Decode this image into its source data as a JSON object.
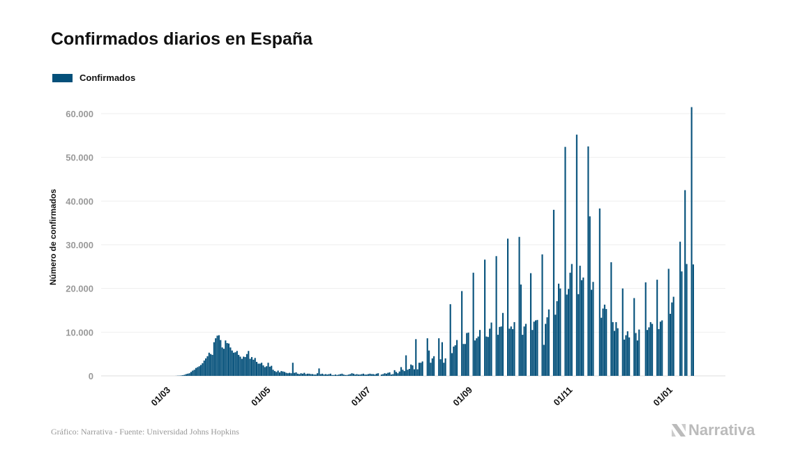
{
  "chart_data": {
    "type": "bar",
    "title": "Confirmados diarios en España",
    "legend": [
      {
        "label": "Confirmados",
        "color": "#04507a"
      }
    ],
    "legend_placement": "top-left",
    "xlabel": "",
    "ylabel": "Número de confirmados",
    "ylim": [
      0,
      60000
    ],
    "yticks": [
      0,
      10000,
      20000,
      30000,
      40000,
      50000,
      60000
    ],
    "ytick_labels": [
      "0",
      "10.000",
      "20.000",
      "30.000",
      "40.000",
      "50.000",
      "60.000"
    ],
    "grid": true,
    "start_date": "2020-02-01",
    "xticks": [
      {
        "label": "01/03",
        "day_index": 29
      },
      {
        "label": "01/05",
        "day_index": 90
      },
      {
        "label": "01/07",
        "day_index": 151
      },
      {
        "label": "01/09",
        "day_index": 213
      },
      {
        "label": "01/11",
        "day_index": 274
      },
      {
        "label": "01/01",
        "day_index": 335
      }
    ],
    "values": [
      0,
      0,
      0,
      0,
      0,
      0,
      0,
      0,
      0,
      0,
      0,
      0,
      0,
      0,
      0,
      0,
      0,
      0,
      0,
      0,
      0,
      0,
      0,
      0,
      0,
      0,
      0,
      0,
      0,
      0,
      0,
      20,
      50,
      60,
      100,
      150,
      250,
      400,
      500,
      600,
      900,
      1200,
      1400,
      1800,
      2000,
      2200,
      2500,
      2900,
      3500,
      4000,
      4500,
      5300,
      5000,
      4800,
      7700,
      8600,
      9200,
      9300,
      8200,
      6500,
      6200,
      8100,
      7500,
      7400,
      6500,
      5800,
      5300,
      5400,
      5700,
      4800,
      4400,
      3900,
      4400,
      4300,
      5000,
      5700,
      3900,
      4300,
      3700,
      4100,
      3200,
      2800,
      2800,
      3000,
      2400,
      2000,
      2200,
      3000,
      2100,
      2300,
      1400,
      1100,
      900,
      1200,
      800,
      1100,
      1000,
      900,
      700,
      600,
      700,
      600,
      3000,
      700,
      800,
      500,
      400,
      600,
      500,
      700,
      400,
      500,
      500,
      400,
      400,
      300,
      300,
      600,
      1700,
      400,
      500,
      300,
      400,
      300,
      400,
      500,
      200,
      200,
      300,
      200,
      300,
      400,
      500,
      300,
      200,
      200,
      300,
      400,
      600,
      500,
      300,
      400,
      300,
      300,
      400,
      500,
      300,
      300,
      400,
      500,
      400,
      400,
      300,
      500,
      600,
      0,
      300,
      400,
      600,
      500,
      700,
      800,
      300,
      400,
      1300,
      900,
      600,
      1000,
      2000,
      1400,
      1100,
      4700,
      1400,
      1600,
      2600,
      2400,
      1500,
      8400,
      1500,
      3000,
      3000,
      3300,
      0,
      0,
      8600,
      5800,
      3000,
      4000,
      4500,
      0,
      0,
      8600,
      3800,
      7700,
      3000,
      4000,
      0,
      0,
      16400,
      5200,
      6700,
      7000,
      8200,
      0,
      0,
      19400,
      7300,
      7300,
      9800,
      9900,
      0,
      0,
      23600,
      8100,
      8600,
      9000,
      10500,
      0,
      0,
      26600,
      9000,
      8900,
      10800,
      12200,
      0,
      0,
      27400,
      9400,
      11200,
      11300,
      14400,
      0,
      0,
      31400,
      10800,
      11300,
      10700,
      12300,
      0,
      0,
      31800,
      20900,
      9400,
      11300,
      11900,
      0,
      0,
      23500,
      10500,
      12400,
      12700,
      12800,
      0,
      0,
      27800,
      7100,
      11900,
      13400,
      15200,
      0,
      0,
      38000,
      14000,
      17100,
      21100,
      20000,
      0,
      0,
      52400,
      18600,
      19900,
      23600,
      25600,
      0,
      0,
      55200,
      18700,
      25200,
      21900,
      22500,
      0,
      0,
      52500,
      36500,
      19700,
      21500,
      0,
      0,
      0,
      38300,
      13300,
      15400,
      16300,
      15300,
      0,
      0,
      26000,
      12300,
      10300,
      12300,
      10900,
      0,
      0,
      20000,
      8300,
      9300,
      10200,
      8800,
      0,
      0,
      17800,
      9800,
      8100,
      10600,
      0,
      0,
      0,
      21400,
      10500,
      11100,
      12300,
      11900,
      0,
      0,
      22000,
      10700,
      12400,
      12700,
      0,
      0,
      0,
      24500,
      14200,
      16800,
      18100,
      0,
      0,
      0,
      30700,
      23900,
      0,
      42500,
      25600,
      0,
      0,
      61500,
      25500
    ]
  },
  "footer": {
    "source": "Gráfico: Narrativa - Fuente: Universidad Johns Hopkins",
    "logo": "Narrativa"
  }
}
